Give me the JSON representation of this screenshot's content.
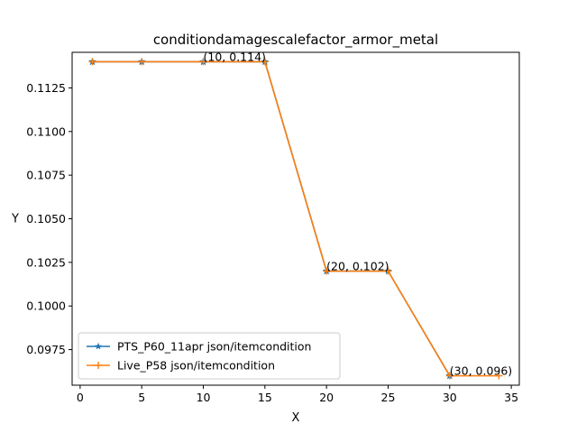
{
  "chart_data": {
    "type": "line",
    "title": "conditiondamagescalefactor_armor_metal",
    "xlabel": "X",
    "ylabel": "Y",
    "xlim": [
      -0.65,
      35.65
    ],
    "ylim": [
      0.09546,
      0.11454
    ],
    "x_ticks": [
      0,
      5,
      10,
      15,
      20,
      25,
      30,
      35
    ],
    "y_ticks": [
      0.0975,
      0.1,
      0.1025,
      0.105,
      0.1075,
      0.11,
      0.1125
    ],
    "x_tick_labels": [
      "0",
      "5",
      "10",
      "15",
      "20",
      "25",
      "30",
      "35"
    ],
    "y_tick_labels": [
      "0.0975",
      "0.1000",
      "0.1025",
      "0.1050",
      "0.1075",
      "0.1100",
      "0.1125"
    ],
    "grid": false,
    "legend_position": "lower-left",
    "series": [
      {
        "name": "PTS_P60_11apr json/itemcondition",
        "color": "#1f77b4",
        "marker": "star",
        "x": [
          1,
          5,
          10,
          15,
          20,
          25,
          30
        ],
        "y": [
          0.114,
          0.114,
          0.114,
          0.114,
          0.102,
          0.102,
          0.096
        ]
      },
      {
        "name": "Live_P58 json/itemcondition",
        "color": "#ff7f0e",
        "marker": "plus",
        "x": [
          1,
          5,
          10,
          15,
          20,
          25,
          30,
          34
        ],
        "y": [
          0.114,
          0.114,
          0.114,
          0.114,
          0.102,
          0.102,
          0.096,
          0.096
        ]
      }
    ],
    "annotations": [
      {
        "text": "(10, 0.114)",
        "x": 10,
        "y": 0.114
      },
      {
        "text": "(20, 0.102)",
        "x": 20,
        "y": 0.102
      },
      {
        "text": "(30, 0.096)",
        "x": 30,
        "y": 0.096
      }
    ]
  }
}
